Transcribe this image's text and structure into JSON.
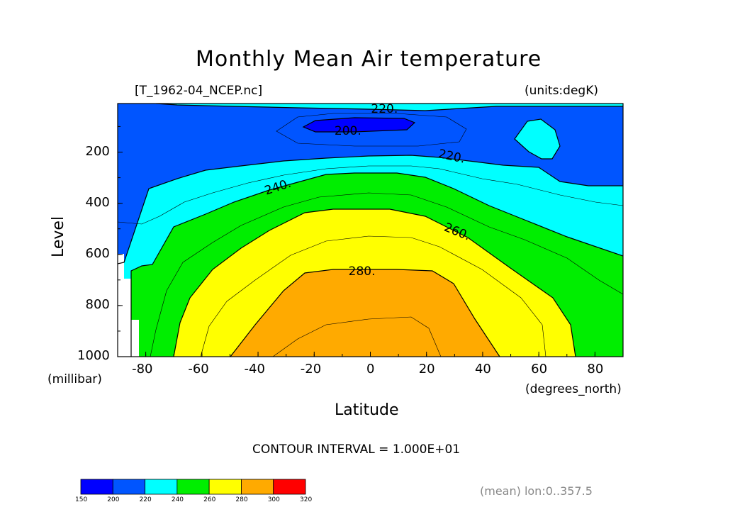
{
  "chart_data": {
    "type": "contour",
    "title": "Monthly Mean Air temperature",
    "dataset_label": "[T_1962-04_NCEP.nc]",
    "units_label": "(units:degK)",
    "xlabel": "Latitude",
    "xunits": "(degrees_north)",
    "ylabel": "Level",
    "yunits": "(millibar)",
    "xlim": [
      -90,
      90
    ],
    "ylim": [
      1000,
      10
    ],
    "x_ticks": [
      "-80",
      "-60",
      "-40",
      "-20",
      "0",
      "20",
      "40",
      "60",
      "80"
    ],
    "y_ticks": [
      "200",
      "400",
      "600",
      "800",
      "1000"
    ],
    "contour_interval_text": "CONTOUR INTERVAL = 1.000E+01",
    "mean_text": "(mean) lon:0..357.5",
    "contour_labels": [
      {
        "text": "220.",
        "lat": 5,
        "level": 30
      },
      {
        "text": "200.",
        "lat": -8,
        "level": 115
      },
      {
        "text": "220.",
        "lat": 29,
        "level": 215
      },
      {
        "text": "240.",
        "lat": -33,
        "level": 335
      },
      {
        "text": "260.",
        "lat": 31,
        "level": 510
      },
      {
        "text": "280.",
        "lat": -3,
        "level": 665
      }
    ],
    "colorbar": {
      "levels": [
        "150",
        "200",
        "220",
        "240",
        "260",
        "280",
        "300",
        "320"
      ],
      "colors": [
        "#0000ff",
        "#0055ff",
        "#00ffff",
        "#00ee00",
        "#ffff00",
        "#ffaa00",
        "#ff0000"
      ]
    }
  }
}
